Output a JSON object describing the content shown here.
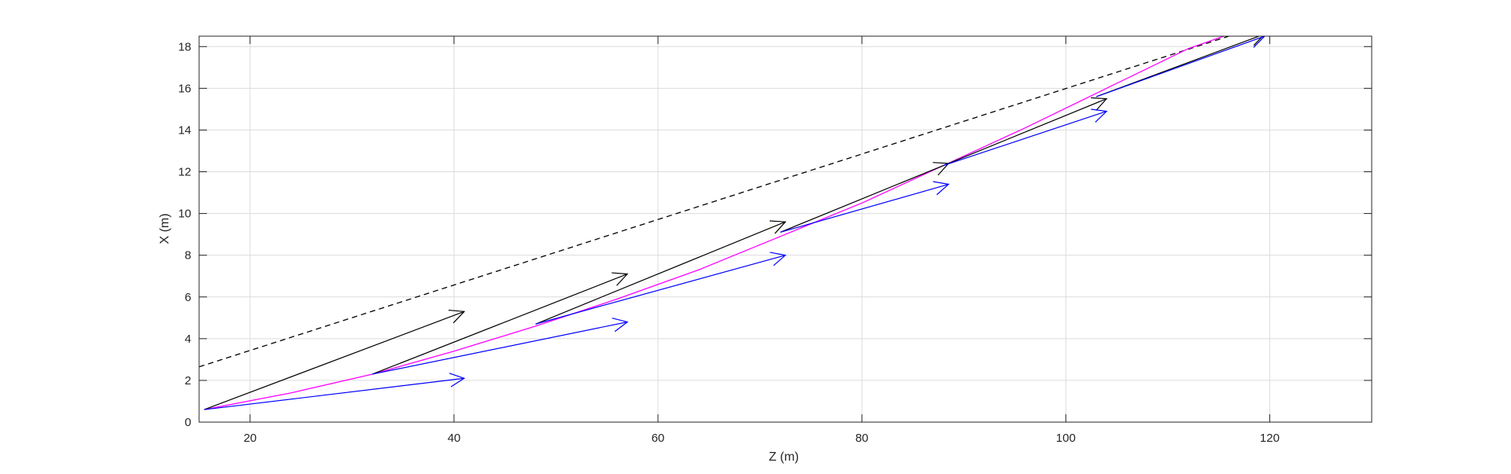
{
  "chart_data": {
    "type": "line",
    "title": "",
    "xlabel": "Z (m)",
    "ylabel": "X (m)",
    "xlim": [
      15,
      130
    ],
    "ylim": [
      0,
      18.5
    ],
    "grid": true,
    "x_ticks": [
      20,
      40,
      60,
      80,
      100,
      120
    ],
    "y_ticks": [
      0,
      2,
      4,
      6,
      8,
      10,
      12,
      14,
      16,
      18
    ],
    "x_tick_labels": [
      "20",
      "40",
      "60",
      "80",
      "100",
      "120"
    ],
    "y_tick_labels": [
      "0",
      "2",
      "4",
      "6",
      "8",
      "10",
      "12",
      "14",
      "16",
      "18"
    ],
    "series": [
      {
        "style": "dashed",
        "color": "#000000",
        "x": [
          15,
          116
        ],
        "y": [
          2.65,
          18.5
        ]
      },
      {
        "style": "solid",
        "color": "#ff00ff",
        "x": [
          15.5,
          24,
          32,
          40,
          48,
          56,
          64,
          72,
          80,
          88,
          96,
          104,
          112,
          115.5
        ],
        "y": [
          0.6,
          1.4,
          2.3,
          3.4,
          4.6,
          5.9,
          7.3,
          8.9,
          10.5,
          12.3,
          14.1,
          16.0,
          17.9,
          18.5
        ]
      }
    ],
    "arrows": [
      {
        "color": "#000000",
        "from": [
          15.5,
          0.6
        ],
        "to": [
          41,
          5.3
        ]
      },
      {
        "color": "#0000ff",
        "from": [
          15.5,
          0.6
        ],
        "to": [
          41,
          2.1
        ]
      },
      {
        "color": "#000000",
        "from": [
          32,
          2.3
        ],
        "to": [
          57,
          7.1
        ]
      },
      {
        "color": "#0000ff",
        "from": [
          32,
          2.3
        ],
        "to": [
          57,
          4.8
        ]
      },
      {
        "color": "#000000",
        "from": [
          48,
          4.7
        ],
        "to": [
          72.5,
          9.6
        ]
      },
      {
        "color": "#0000ff",
        "from": [
          48,
          4.7
        ],
        "to": [
          72.5,
          8.0
        ]
      },
      {
        "color": "#000000",
        "from": [
          72,
          9.1
        ],
        "to": [
          88.5,
          12.4
        ]
      },
      {
        "color": "#0000ff",
        "from": [
          72,
          9.1
        ],
        "to": [
          88.5,
          11.4
        ]
      },
      {
        "color": "#000000",
        "from": [
          88,
          12.3
        ],
        "to": [
          104,
          15.5
        ]
      },
      {
        "color": "#0000ff",
        "from": [
          88,
          12.3
        ],
        "to": [
          104,
          14.9
        ]
      },
      {
        "color": "#000000",
        "from": [
          103,
          15.6
        ],
        "to": [
          119.5,
          18.6
        ]
      },
      {
        "color": "#0000ff",
        "from": [
          103,
          15.6
        ],
        "to": [
          119.5,
          18.5
        ]
      }
    ]
  }
}
